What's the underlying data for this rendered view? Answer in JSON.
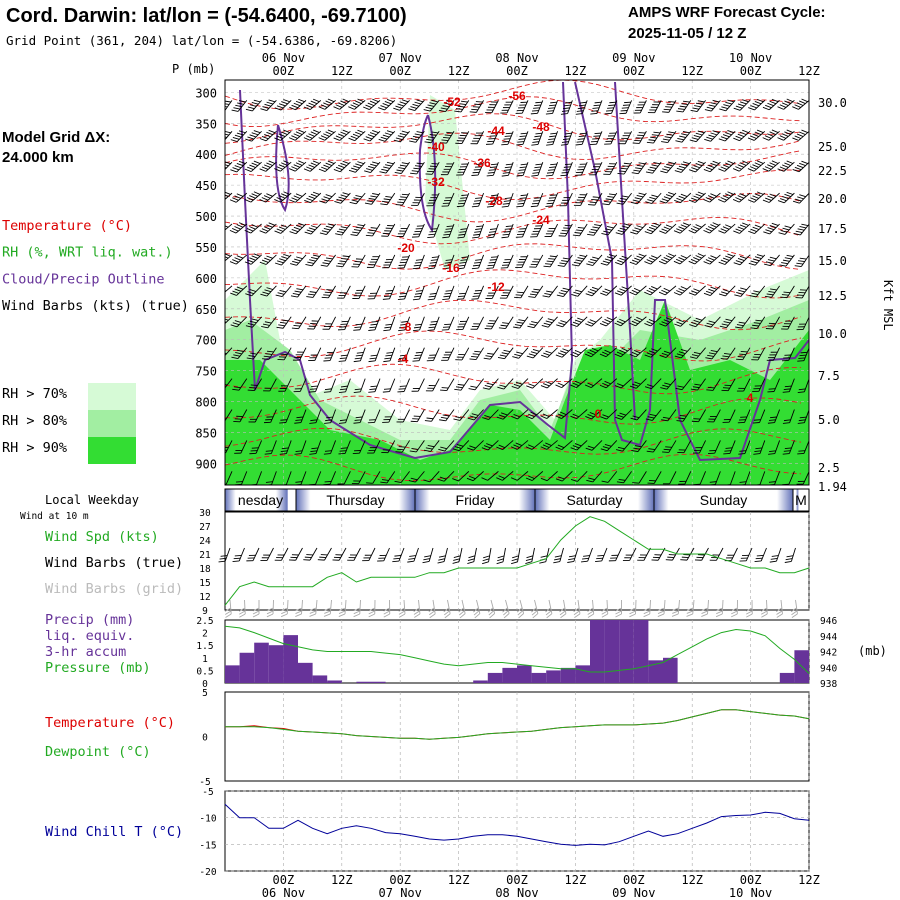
{
  "header": {
    "title": "Cord. Darwin:  lat/lon = (-54.6400, -69.7100)",
    "subtitle": "Grid Point (361, 204) lat/lon = (-54.6386, -69.8206)",
    "cycle_line1": "AMPS WRF Forecast Cycle:",
    "cycle_line2": "2025-11-05 / 12  Z"
  },
  "left_panel": {
    "grid_label_1": "Model Grid ΔX:",
    "grid_label_2": " 24.000 km",
    "legend": [
      {
        "text": "Temperature (°C)",
        "color": "#dd0000"
      },
      {
        "text": "RH (%, WRT liq. wat.)",
        "color": "#22aa22"
      },
      {
        "text": "Cloud/Precip Outline",
        "color": "#663399"
      },
      {
        "text": "Wind Barbs (kts) (true)",
        "color": "#000000"
      }
    ],
    "rh_legend": [
      {
        "text": "RH > 70%",
        "color": "#d6fad6"
      },
      {
        "text": "RH > 80%",
        "color": "#a2eea2"
      },
      {
        "text": "RH > 90%",
        "color": "#33dd33"
      }
    ]
  },
  "time_axis": {
    "hour_labels": [
      "00Z",
      "12Z",
      "00Z",
      "12Z",
      "00Z",
      "12Z",
      "00Z",
      "12Z",
      "00Z",
      "12Z"
    ],
    "hour_positions_h": [
      30,
      42,
      54,
      66,
      78,
      90,
      102,
      114,
      126,
      138
    ],
    "date_labels": [
      "06 Nov",
      "07 Nov",
      "08 Nov",
      "09 Nov",
      "10 Nov"
    ],
    "date_positions_h": [
      30,
      54,
      78,
      102,
      126
    ],
    "range_h": [
      18,
      138
    ]
  },
  "sounding": {
    "ylabel_left": "P (mb)",
    "ylabel_right": "Kft MSL",
    "pressure_ticks": [
      300,
      350,
      400,
      450,
      500,
      550,
      600,
      650,
      700,
      750,
      800,
      850,
      900
    ],
    "height_ticks": [
      "30.0",
      "25.0",
      "22.5",
      "20.0",
      "17.5",
      "15.0",
      "12.5",
      "10.0",
      "7.5",
      "5.0",
      "2.5",
      "1.94"
    ],
    "temp_labels": [
      "-52",
      "-56",
      "-44",
      "-48",
      "-40",
      "-36",
      "-32",
      "-28",
      "-24",
      "-20",
      "-16",
      "-12",
      "-8",
      "-4",
      "0",
      "4"
    ]
  },
  "weekday_strip": {
    "label": "Local Weekday",
    "days": [
      "nesday",
      "Thursday",
      "Friday",
      "Saturday",
      "Sunday",
      "M"
    ]
  },
  "panels": {
    "wind": {
      "note": "Wind at 10 m",
      "labels": [
        {
          "text": "Wind Spd (kts)",
          "color": "#22aa22"
        },
        {
          "text": "Wind Barbs (true)",
          "color": "#000000"
        },
        {
          "text": "Wind Barbs (grid)",
          "color": "#bbbbbb"
        }
      ],
      "yticks": [
        "30",
        "27",
        "24",
        "21",
        "18",
        "15",
        "12",
        "9"
      ]
    },
    "precip": {
      "labels": [
        {
          "text": "Precip (mm)",
          "color": "#663399"
        },
        {
          "text": "liq. equiv.",
          "color": "#663399"
        },
        {
          "text": "3-hr accum",
          "color": "#663399"
        },
        {
          "text": "Pressure (mb)",
          "color": "#22aa22"
        }
      ],
      "yticks_left": [
        "2.5",
        "2",
        "1.5",
        "1",
        "0.5",
        "0"
      ],
      "yticks_right": [
        "946",
        "944",
        "942",
        "940",
        "938"
      ],
      "unit_right": "(mb)"
    },
    "temp": {
      "labels": [
        {
          "text": "Temperature (°C)",
          "color": "#dd0000"
        },
        {
          "text": "Dewpoint (°C)",
          "color": "#22aa22"
        }
      ],
      "yticks": [
        "5",
        "0",
        "-5"
      ]
    },
    "chill": {
      "labels": [
        {
          "text": "Wind Chill T (°C)",
          "color": "#000099"
        }
      ],
      "yticks": [
        "-5",
        "-10",
        "-15",
        "-20"
      ]
    }
  },
  "chart_data": [
    {
      "type": "line",
      "panel": "wind_speed_10m",
      "x_unit": "forecast hour from 2025-11-05 12Z",
      "xlim": [
        18,
        138
      ],
      "ylim": [
        9,
        30
      ],
      "series": [
        {
          "name": "Wind Spd (kts)",
          "color": "#22aa22",
          "x": [
            18,
            21,
            24,
            27,
            30,
            33,
            36,
            39,
            42,
            45,
            48,
            51,
            54,
            57,
            60,
            63,
            66,
            69,
            72,
            75,
            78,
            81,
            84,
            87,
            90,
            93,
            96,
            99,
            102,
            105,
            108,
            111,
            114,
            117,
            120,
            123,
            126,
            129,
            132,
            135,
            138
          ],
          "values": [
            10,
            14,
            15,
            14,
            14,
            14,
            14,
            16,
            17,
            15,
            16,
            16,
            16,
            16,
            17,
            17,
            18,
            18,
            18,
            18,
            18,
            19,
            20,
            24,
            27,
            29,
            28,
            26,
            24,
            22,
            22,
            21,
            21,
            21,
            20,
            19,
            18,
            18,
            17,
            17,
            18
          ]
        }
      ]
    },
    {
      "type": "bar",
      "panel": "precip_3hr",
      "x_unit": "forecast hour from 2025-11-05 12Z",
      "xlim": [
        18,
        138
      ],
      "ylim": [
        0,
        2.5
      ],
      "series": [
        {
          "name": "Precip (mm)",
          "color": "#663399",
          "x": [
            19.5,
            22.5,
            25.5,
            28.5,
            31.5,
            34.5,
            37.5,
            40.5,
            43.5,
            46.5,
            49.5,
            52.5,
            55.5,
            58.5,
            61.5,
            64.5,
            67.5,
            70.5,
            73.5,
            76.5,
            79.5,
            82.5,
            85.5,
            88.5,
            91.5,
            94.5,
            97.5,
            100.5,
            103.5,
            106.5,
            109.5,
            112.5,
            115.5,
            118.5,
            121.5,
            124.5,
            127.5,
            130.5,
            133.5,
            136.5
          ],
          "values": [
            0.7,
            1.2,
            1.6,
            1.5,
            1.9,
            0.8,
            0.3,
            0.1,
            0.0,
            0.05,
            0.05,
            0.0,
            0.0,
            0.0,
            0.0,
            0.0,
            0.0,
            0.1,
            0.4,
            0.6,
            0.7,
            0.4,
            0.5,
            0.6,
            0.7,
            2.5,
            2.5,
            2.5,
            2.5,
            0.9,
            1.0,
            0.0,
            0.0,
            0.0,
            0.0,
            0.0,
            0.0,
            0.0,
            0.4,
            1.3
          ]
        }
      ]
    },
    {
      "type": "line",
      "panel": "pressure",
      "x_unit": "forecast hour from 2025-11-05 12Z",
      "xlim": [
        18,
        138
      ],
      "ylim": [
        938,
        946
      ],
      "series": [
        {
          "name": "Pressure (mb)",
          "color": "#22aa22",
          "x": [
            18,
            21,
            24,
            27,
            30,
            33,
            36,
            39,
            42,
            45,
            48,
            51,
            54,
            57,
            60,
            63,
            66,
            69,
            72,
            75,
            78,
            81,
            84,
            87,
            90,
            93,
            96,
            99,
            102,
            105,
            108,
            111,
            114,
            117,
            120,
            123,
            126,
            129,
            132,
            135,
            138
          ],
          "values": [
            945.2,
            945.0,
            944.4,
            943.7,
            943.0,
            942.6,
            942.2,
            942.0,
            942.0,
            942.0,
            942.0,
            941.8,
            941.6,
            941.2,
            940.8,
            940.4,
            940.2,
            940.4,
            940.6,
            940.6,
            940.4,
            940.2,
            940.0,
            939.8,
            939.8,
            939.4,
            939.4,
            939.6,
            939.8,
            940.2,
            940.6,
            941.6,
            942.6,
            943.6,
            944.4,
            944.8,
            944.6,
            944.0,
            942.4,
            941.0,
            939.2
          ]
        }
      ]
    },
    {
      "type": "line",
      "panel": "temperature",
      "x_unit": "forecast hour from 2025-11-05 12Z",
      "xlim": [
        18,
        138
      ],
      "ylim": [
        -5,
        5
      ],
      "series": [
        {
          "name": "Temperature (°C)",
          "color": "#dd0000",
          "x": [
            18,
            21,
            24,
            27,
            30,
            33,
            36,
            39,
            42,
            45,
            48,
            51,
            54,
            57,
            60,
            63,
            66,
            69,
            72,
            75,
            78,
            81,
            84,
            87,
            90,
            93,
            96,
            99,
            102,
            105,
            108,
            111,
            114,
            117,
            120,
            123,
            126,
            129,
            132,
            135,
            138
          ],
          "values": [
            1.1,
            1.1,
            1.2,
            1.0,
            0.9,
            0.6,
            0.5,
            0.4,
            0.3,
            0.1,
            0.0,
            -0.1,
            -0.2,
            -0.2,
            -0.3,
            -0.2,
            -0.1,
            0.1,
            0.3,
            0.4,
            0.5,
            0.6,
            0.8,
            1.0,
            1.1,
            1.2,
            1.3,
            1.3,
            1.3,
            1.4,
            1.5,
            1.8,
            2.2,
            2.6,
            3.0,
            3.0,
            2.8,
            2.6,
            2.4,
            2.3,
            2.0
          ]
        },
        {
          "name": "Dewpoint (°C)",
          "color": "#22aa22",
          "x": [
            18,
            21,
            24,
            27,
            30,
            33,
            36,
            39,
            42,
            45,
            48,
            51,
            54,
            57,
            60,
            63,
            66,
            69,
            72,
            75,
            78,
            81,
            84,
            87,
            90,
            93,
            96,
            99,
            102,
            105,
            108,
            111,
            114,
            117,
            120,
            123,
            126,
            129,
            132,
            135,
            138
          ],
          "values": [
            1.1,
            1.1,
            1.1,
            1.0,
            0.8,
            0.6,
            0.5,
            0.4,
            0.3,
            0.1,
            0.0,
            -0.1,
            -0.2,
            -0.2,
            -0.3,
            -0.2,
            -0.1,
            0.1,
            0.3,
            0.4,
            0.5,
            0.6,
            0.8,
            1.0,
            1.1,
            1.2,
            1.3,
            1.3,
            1.3,
            1.4,
            1.5,
            1.8,
            2.2,
            2.6,
            3.0,
            3.0,
            2.8,
            2.6,
            2.4,
            2.3,
            2.0
          ]
        }
      ]
    },
    {
      "type": "line",
      "panel": "wind_chill",
      "x_unit": "forecast hour from 2025-11-05 12Z",
      "xlim": [
        18,
        138
      ],
      "ylim": [
        -20,
        -5
      ],
      "series": [
        {
          "name": "Wind Chill T (°C)",
          "color": "#000099",
          "x": [
            18,
            21,
            24,
            27,
            30,
            33,
            36,
            39,
            42,
            45,
            48,
            51,
            54,
            57,
            60,
            63,
            66,
            69,
            72,
            75,
            78,
            81,
            84,
            87,
            90,
            93,
            96,
            99,
            102,
            105,
            108,
            111,
            114,
            117,
            120,
            123,
            126,
            129,
            132,
            135,
            138
          ],
          "values": [
            -7.5,
            -10,
            -10,
            -12,
            -12,
            -10.5,
            -12,
            -13,
            -12,
            -11.5,
            -12,
            -12.8,
            -13,
            -13.5,
            -14,
            -14.2,
            -14,
            -13.5,
            -13.2,
            -13.2,
            -13.5,
            -14,
            -14.5,
            -15,
            -15.2,
            -15,
            -15.1,
            -14.5,
            -13.5,
            -12.5,
            -13.5,
            -13,
            -12,
            -11,
            -9.8,
            -9.6,
            -9.5,
            -9,
            -9.2,
            -10.2,
            -10.5
          ]
        }
      ]
    }
  ]
}
